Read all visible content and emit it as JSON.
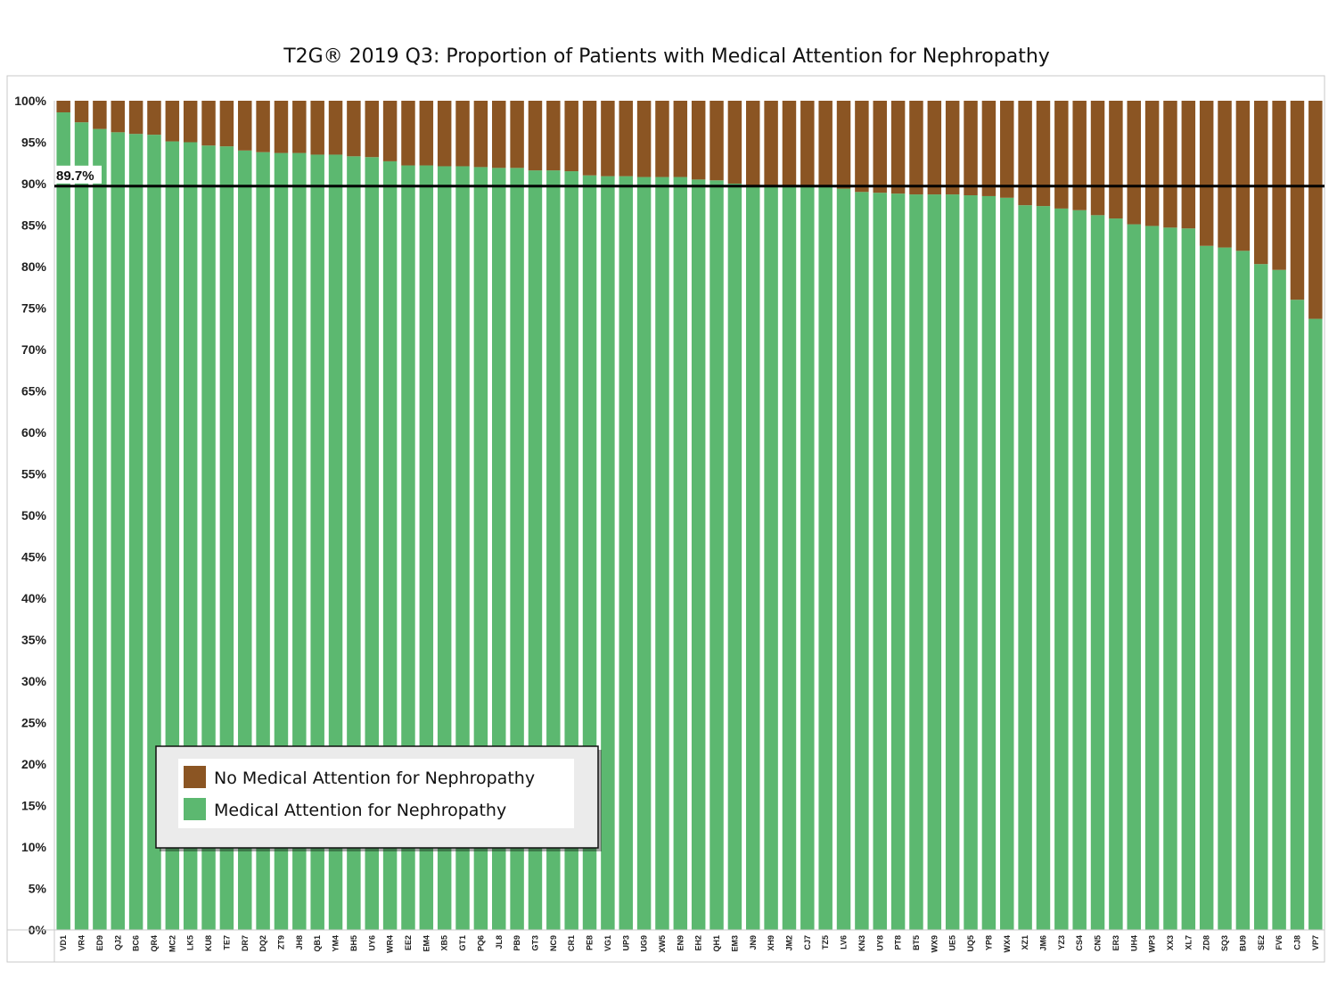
{
  "chart_data": {
    "type": "bar",
    "stacked": true,
    "title": "T2G® 2019 Q3: Proportion of Patients with Medical Attention for Nephropathy",
    "xlabel": "",
    "ylabel": "",
    "ylim": [
      0,
      100
    ],
    "y_ticks": [
      "0%",
      "5%",
      "10%",
      "15%",
      "20%",
      "25%",
      "30%",
      "35%",
      "40%",
      "45%",
      "50%",
      "55%",
      "60%",
      "65%",
      "70%",
      "75%",
      "80%",
      "85%",
      "90%",
      "95%",
      "100%"
    ],
    "categories": [
      "VD1",
      "VR4",
      "ED9",
      "QJ2",
      "BC6",
      "QR4",
      "MC2",
      "LK5",
      "KU8",
      "TE7",
      "DR7",
      "DQ2",
      "ZT9",
      "JH8",
      "QB1",
      "YM4",
      "BH5",
      "UY6",
      "WR4",
      "EE2",
      "EM4",
      "XB5",
      "GT1",
      "PQ6",
      "JL8",
      "PB9",
      "GT3",
      "NC9",
      "CR1",
      "PE8",
      "VG1",
      "UP3",
      "UG9",
      "XW5",
      "EN9",
      "EH2",
      "QH1",
      "EM3",
      "JN9",
      "XH9",
      "JM2",
      "CJ7",
      "TZ5",
      "LV6",
      "KN3",
      "UY8",
      "PT8",
      "BT5",
      "WX9",
      "UE5",
      "UQ5",
      "YP8",
      "WX4",
      "XZ1",
      "JM6",
      "YZ3",
      "CS4",
      "CN5",
      "ER3",
      "UH4",
      "WP3",
      "XX3",
      "XL7",
      "ZD8",
      "SQ3",
      "BU9",
      "SE2",
      "FV6",
      "CJ8",
      "VP7"
    ],
    "series": [
      {
        "name": "Medical Attention for Nephropathy",
        "color": "#5cb870",
        "values": [
          98.6,
          97.4,
          96.6,
          96.2,
          96.0,
          95.9,
          95.1,
          95.0,
          94.6,
          94.5,
          94.0,
          93.8,
          93.7,
          93.7,
          93.5,
          93.5,
          93.3,
          93.2,
          92.7,
          92.2,
          92.2,
          92.1,
          92.1,
          92.0,
          91.9,
          91.9,
          91.6,
          91.6,
          91.5,
          91.0,
          90.9,
          90.9,
          90.8,
          90.8,
          90.8,
          90.5,
          90.4,
          90.0,
          89.8,
          89.7,
          89.7,
          89.7,
          89.6,
          89.4,
          89.0,
          88.9,
          88.8,
          88.7,
          88.7,
          88.7,
          88.6,
          88.5,
          88.3,
          87.4,
          87.3,
          87.0,
          86.8,
          86.2,
          85.8,
          85.1,
          84.9,
          84.7,
          84.6,
          82.5,
          82.3,
          81.9,
          80.3,
          79.6,
          76.0,
          73.7
        ]
      },
      {
        "name": "No Medical Attention for Nephropathy",
        "color": "#8b5523",
        "values": [
          1.4,
          2.6,
          3.4,
          3.8,
          4.0,
          4.1,
          4.9,
          5.0,
          5.4,
          5.5,
          6.0,
          6.2,
          6.3,
          6.3,
          6.5,
          6.5,
          6.7,
          6.8,
          7.3,
          7.8,
          7.8,
          7.9,
          7.9,
          8.0,
          8.1,
          8.1,
          8.4,
          8.4,
          8.5,
          9.0,
          9.1,
          9.1,
          9.2,
          9.2,
          9.2,
          9.5,
          9.6,
          10.0,
          10.2,
          10.3,
          10.3,
          10.3,
          10.4,
          10.6,
          11.0,
          11.1,
          11.2,
          11.3,
          11.3,
          11.3,
          11.4,
          11.5,
          11.7,
          12.6,
          12.7,
          13.0,
          13.2,
          13.8,
          14.2,
          14.9,
          15.1,
          15.3,
          15.4,
          17.5,
          17.7,
          18.1,
          19.7,
          20.4,
          24.0,
          26.3
        ]
      }
    ],
    "reference_line": {
      "value": 89.7,
      "label": "89.7%",
      "color": "#000000"
    },
    "legend": {
      "placement": "bottom-left",
      "entries": [
        {
          "label": "No Medical Attention for Nephropathy",
          "color": "#8b5523"
        },
        {
          "label": "Medical Attention for Nephropathy",
          "color": "#5cb870"
        }
      ]
    },
    "grid": false
  }
}
